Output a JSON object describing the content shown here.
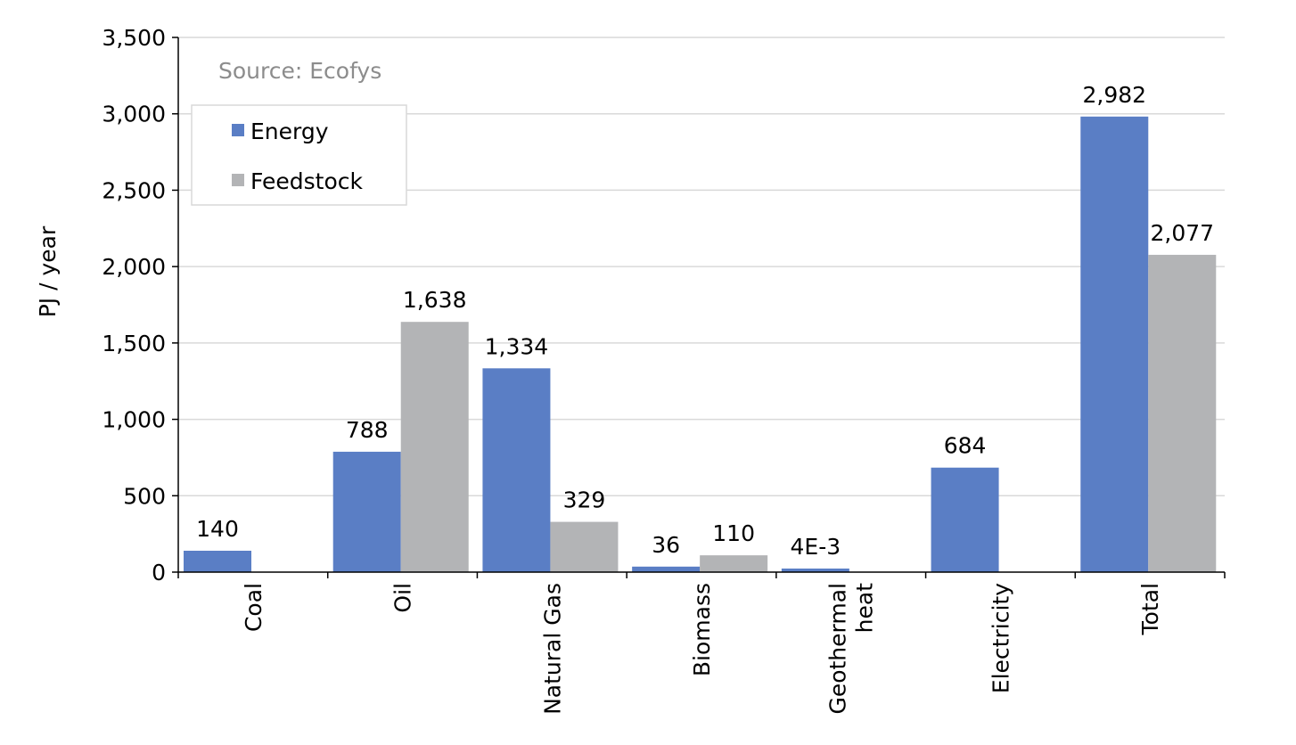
{
  "chart_data": {
    "type": "bar",
    "source_note": "Source: Ecofys",
    "ylabel": "PJ / year",
    "xlabel": "",
    "ylim": [
      0,
      3500
    ],
    "yticks": [
      0,
      500,
      1000,
      1500,
      2000,
      2500,
      3000,
      3500
    ],
    "ytick_labels": [
      "0",
      "500",
      "1,000",
      "1,500",
      "2,000",
      "2,500",
      "3,000",
      "3,500"
    ],
    "grid": true,
    "legend_position": "top-left",
    "categories": [
      [
        "Coal"
      ],
      [
        "Oil"
      ],
      [
        "Natural Gas"
      ],
      [
        "Biomass"
      ],
      [
        "Geothermal",
        "heat"
      ],
      [
        "Electricity"
      ],
      [
        "Total"
      ]
    ],
    "series": [
      {
        "name": "Energy",
        "color": "#5a7ec5",
        "values": [
          140,
          788,
          1334,
          36,
          0.004,
          684,
          2982
        ],
        "labels": [
          "140",
          "788",
          "1,334",
          "36",
          "4E-3",
          "684",
          "2,982"
        ]
      },
      {
        "name": "Feedstock",
        "color": "#b3b4b6",
        "values": [
          0,
          1638,
          329,
          110,
          0,
          0,
          2077
        ],
        "labels": [
          null,
          "1,638",
          "329",
          "110",
          null,
          null,
          "2,077"
        ]
      }
    ]
  }
}
